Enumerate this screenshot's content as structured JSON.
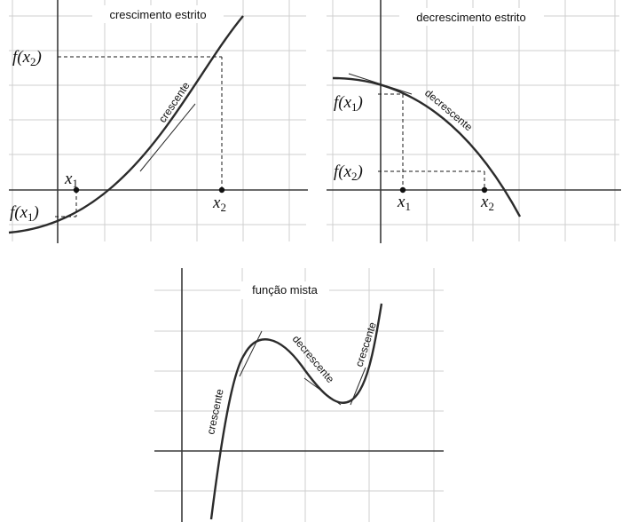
{
  "panels": [
    {
      "title": "crescimento estrito",
      "curve_label": "crescente",
      "x1_label": "x1",
      "x2_label": "x2",
      "fx1_label": "f(x1)",
      "fx2_label": "f(x2)"
    },
    {
      "title": "decrescimento estrito",
      "curve_label": "decrescente",
      "x1_label": "x1",
      "x2_label": "x2",
      "fx1_label": "f(x1)",
      "fx2_label": "f(x2)"
    },
    {
      "title": "função mista",
      "labels": [
        "crescente",
        "decrescente",
        "crescente"
      ]
    }
  ]
}
